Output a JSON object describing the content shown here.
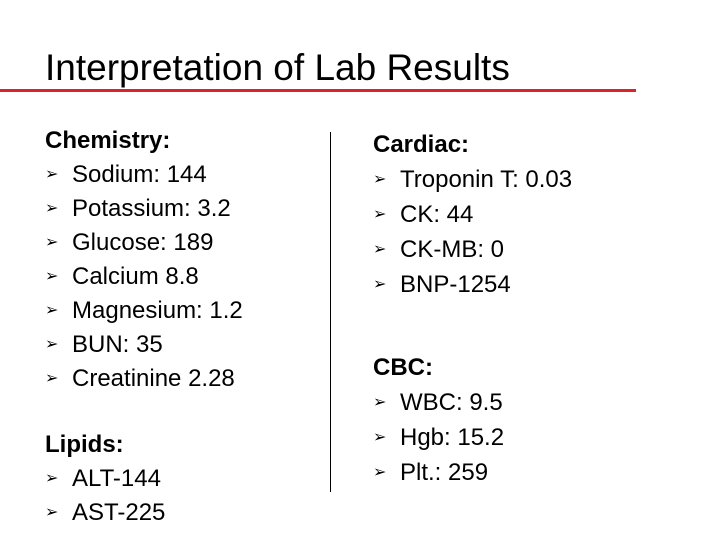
{
  "slide": {
    "title": "Interpretation of Lab Results",
    "accent_color": "#d9242b",
    "bullet_glyph": "➢"
  },
  "chemistry": {
    "heading": "Chemistry:",
    "items": [
      "Sodium: 144",
      "Potassium: 3.2",
      "Glucose: 189",
      "Calcium 8.8",
      "Magnesium: 1.2",
      "BUN: 35",
      "Creatinine 2.28"
    ]
  },
  "lipids": {
    "heading": "Lipids:",
    "items": [
      "ALT-144",
      "AST-225"
    ]
  },
  "cardiac": {
    "heading": "Cardiac:",
    "items": [
      "Troponin T: 0.03",
      "CK: 44",
      "CK-MB: 0",
      "BNP-1254"
    ]
  },
  "cbc": {
    "heading": "CBC:",
    "items": [
      "WBC: 9.5",
      "Hgb: 15.2",
      "Plt.: 259"
    ]
  }
}
